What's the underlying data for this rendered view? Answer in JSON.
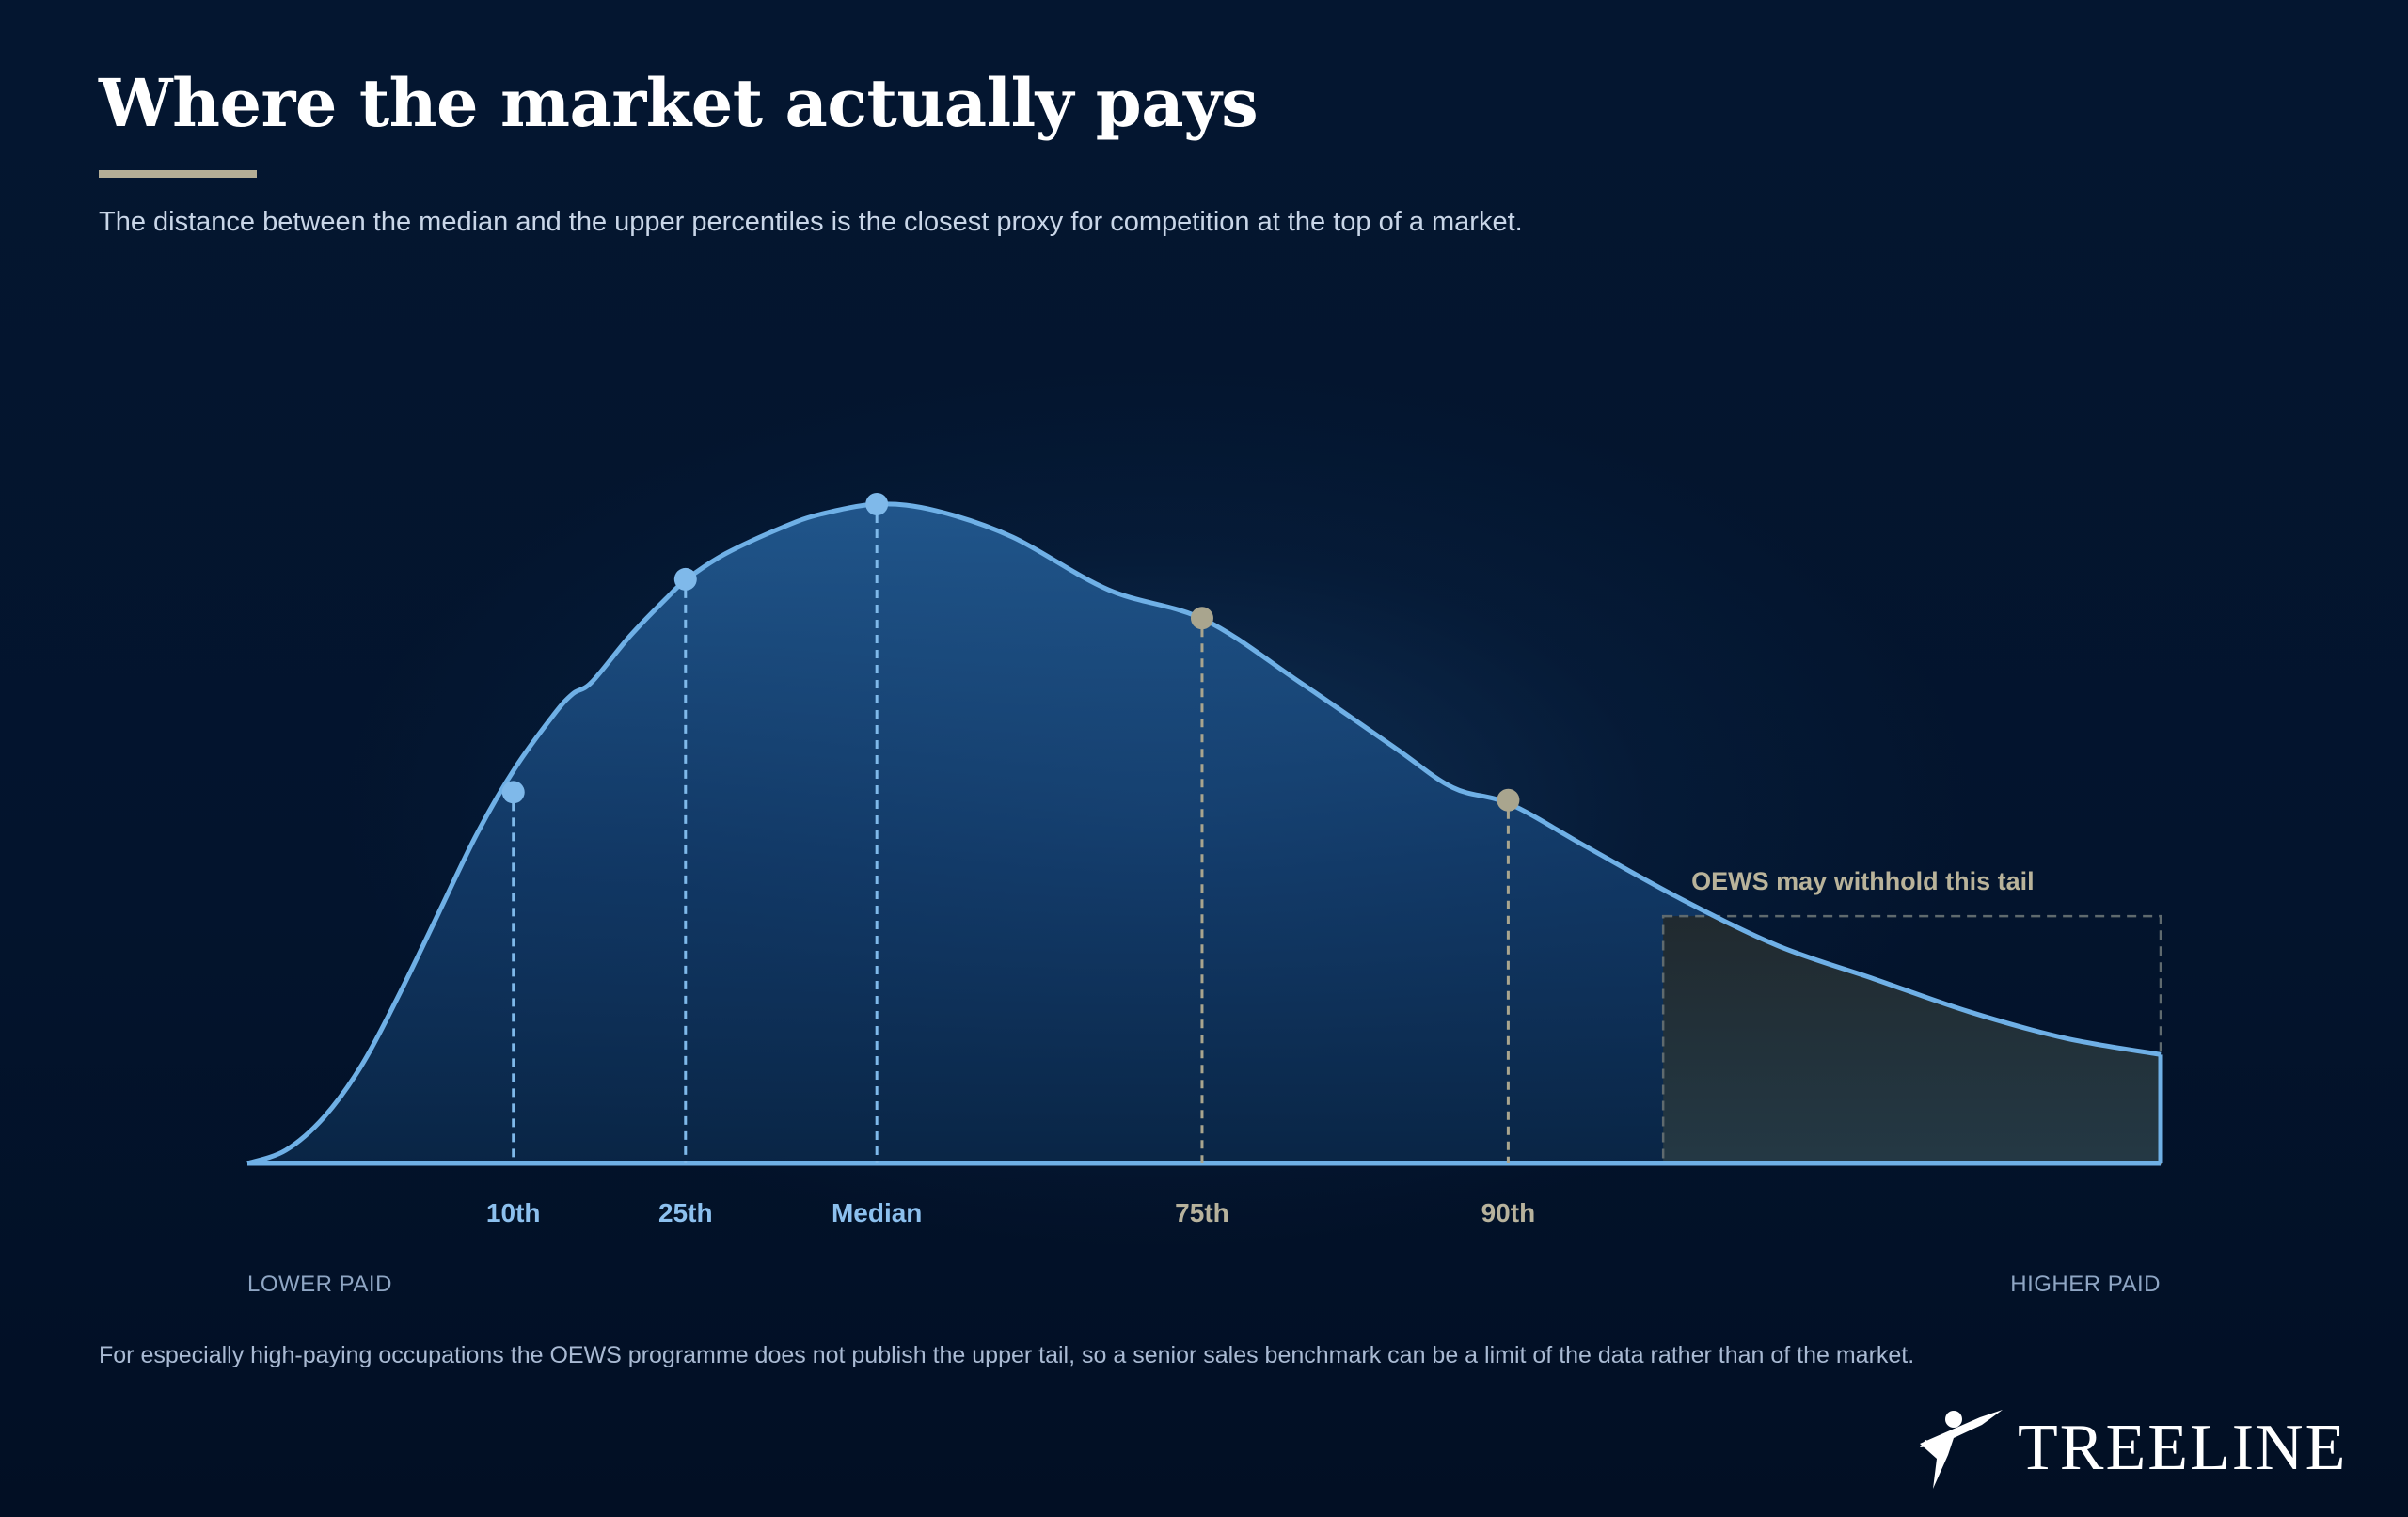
{
  "title": "Where the market actually pays",
  "subtitle": "The distance between the median and the upper percentiles is the closest proxy for competition at the top of a market.",
  "footnote": "For especially high-paying occupations the OEWS programme does not publish the upper tail, so a senior sales benchmark can be a limit of the data rather than of the market.",
  "brand": {
    "name": "TREELINE"
  },
  "colors": {
    "background": "#03132b",
    "curve": "#6fb0e6",
    "lower_markers": "#7fb9ea",
    "upper_markers": "#a9a58e",
    "tail_box": "#2b3a3f",
    "accent_rule": "#b5ae96"
  },
  "chart_data": {
    "type": "area",
    "title": "",
    "xlabel": "",
    "ylabel": "",
    "x_axis_ends": {
      "left": "LOWER PAID",
      "right": "HIGHER PAID"
    },
    "xlim": [
      0,
      100
    ],
    "ylim": [
      0,
      1
    ],
    "curve": [
      [
        0,
        0.0
      ],
      [
        2,
        0.02
      ],
      [
        4,
        0.07
      ],
      [
        6,
        0.15
      ],
      [
        8,
        0.26
      ],
      [
        10,
        0.38
      ],
      [
        12,
        0.5
      ],
      [
        14,
        0.6
      ],
      [
        16,
        0.68
      ],
      [
        17,
        0.712
      ],
      [
        18,
        0.73
      ],
      [
        20,
        0.8
      ],
      [
        22,
        0.86
      ],
      [
        23,
        0.887
      ],
      [
        25,
        0.925
      ],
      [
        28,
        0.965
      ],
      [
        30,
        0.985
      ],
      [
        33,
        1.0
      ],
      [
        36,
        0.99
      ],
      [
        40,
        0.95
      ],
      [
        45,
        0.87
      ],
      [
        50,
        0.825
      ],
      [
        55,
        0.73
      ],
      [
        60,
        0.63
      ],
      [
        63,
        0.57
      ],
      [
        66,
        0.545
      ],
      [
        70,
        0.48
      ],
      [
        75,
        0.4
      ],
      [
        80,
        0.33
      ],
      [
        85,
        0.28
      ],
      [
        90,
        0.23
      ],
      [
        95,
        0.19
      ],
      [
        100,
        0.165
      ]
    ],
    "percentile_markers": [
      {
        "label": "10th",
        "x": 13.9,
        "y": 0.563,
        "group": "lower"
      },
      {
        "label": "25th",
        "x": 22.9,
        "y": 0.886,
        "group": "lower"
      },
      {
        "label": "Median",
        "x": 32.9,
        "y": 1.0,
        "group": "lower"
      },
      {
        "label": "75th",
        "x": 49.9,
        "y": 0.827,
        "group": "upper"
      },
      {
        "label": "90th",
        "x": 65.9,
        "y": 0.551,
        "group": "upper"
      }
    ],
    "annotation": {
      "label": "OEWS may withhold this tail",
      "x_from": 74,
      "x_to": 100,
      "y_top": 0.375
    },
    "grid": false,
    "legend": "none"
  }
}
